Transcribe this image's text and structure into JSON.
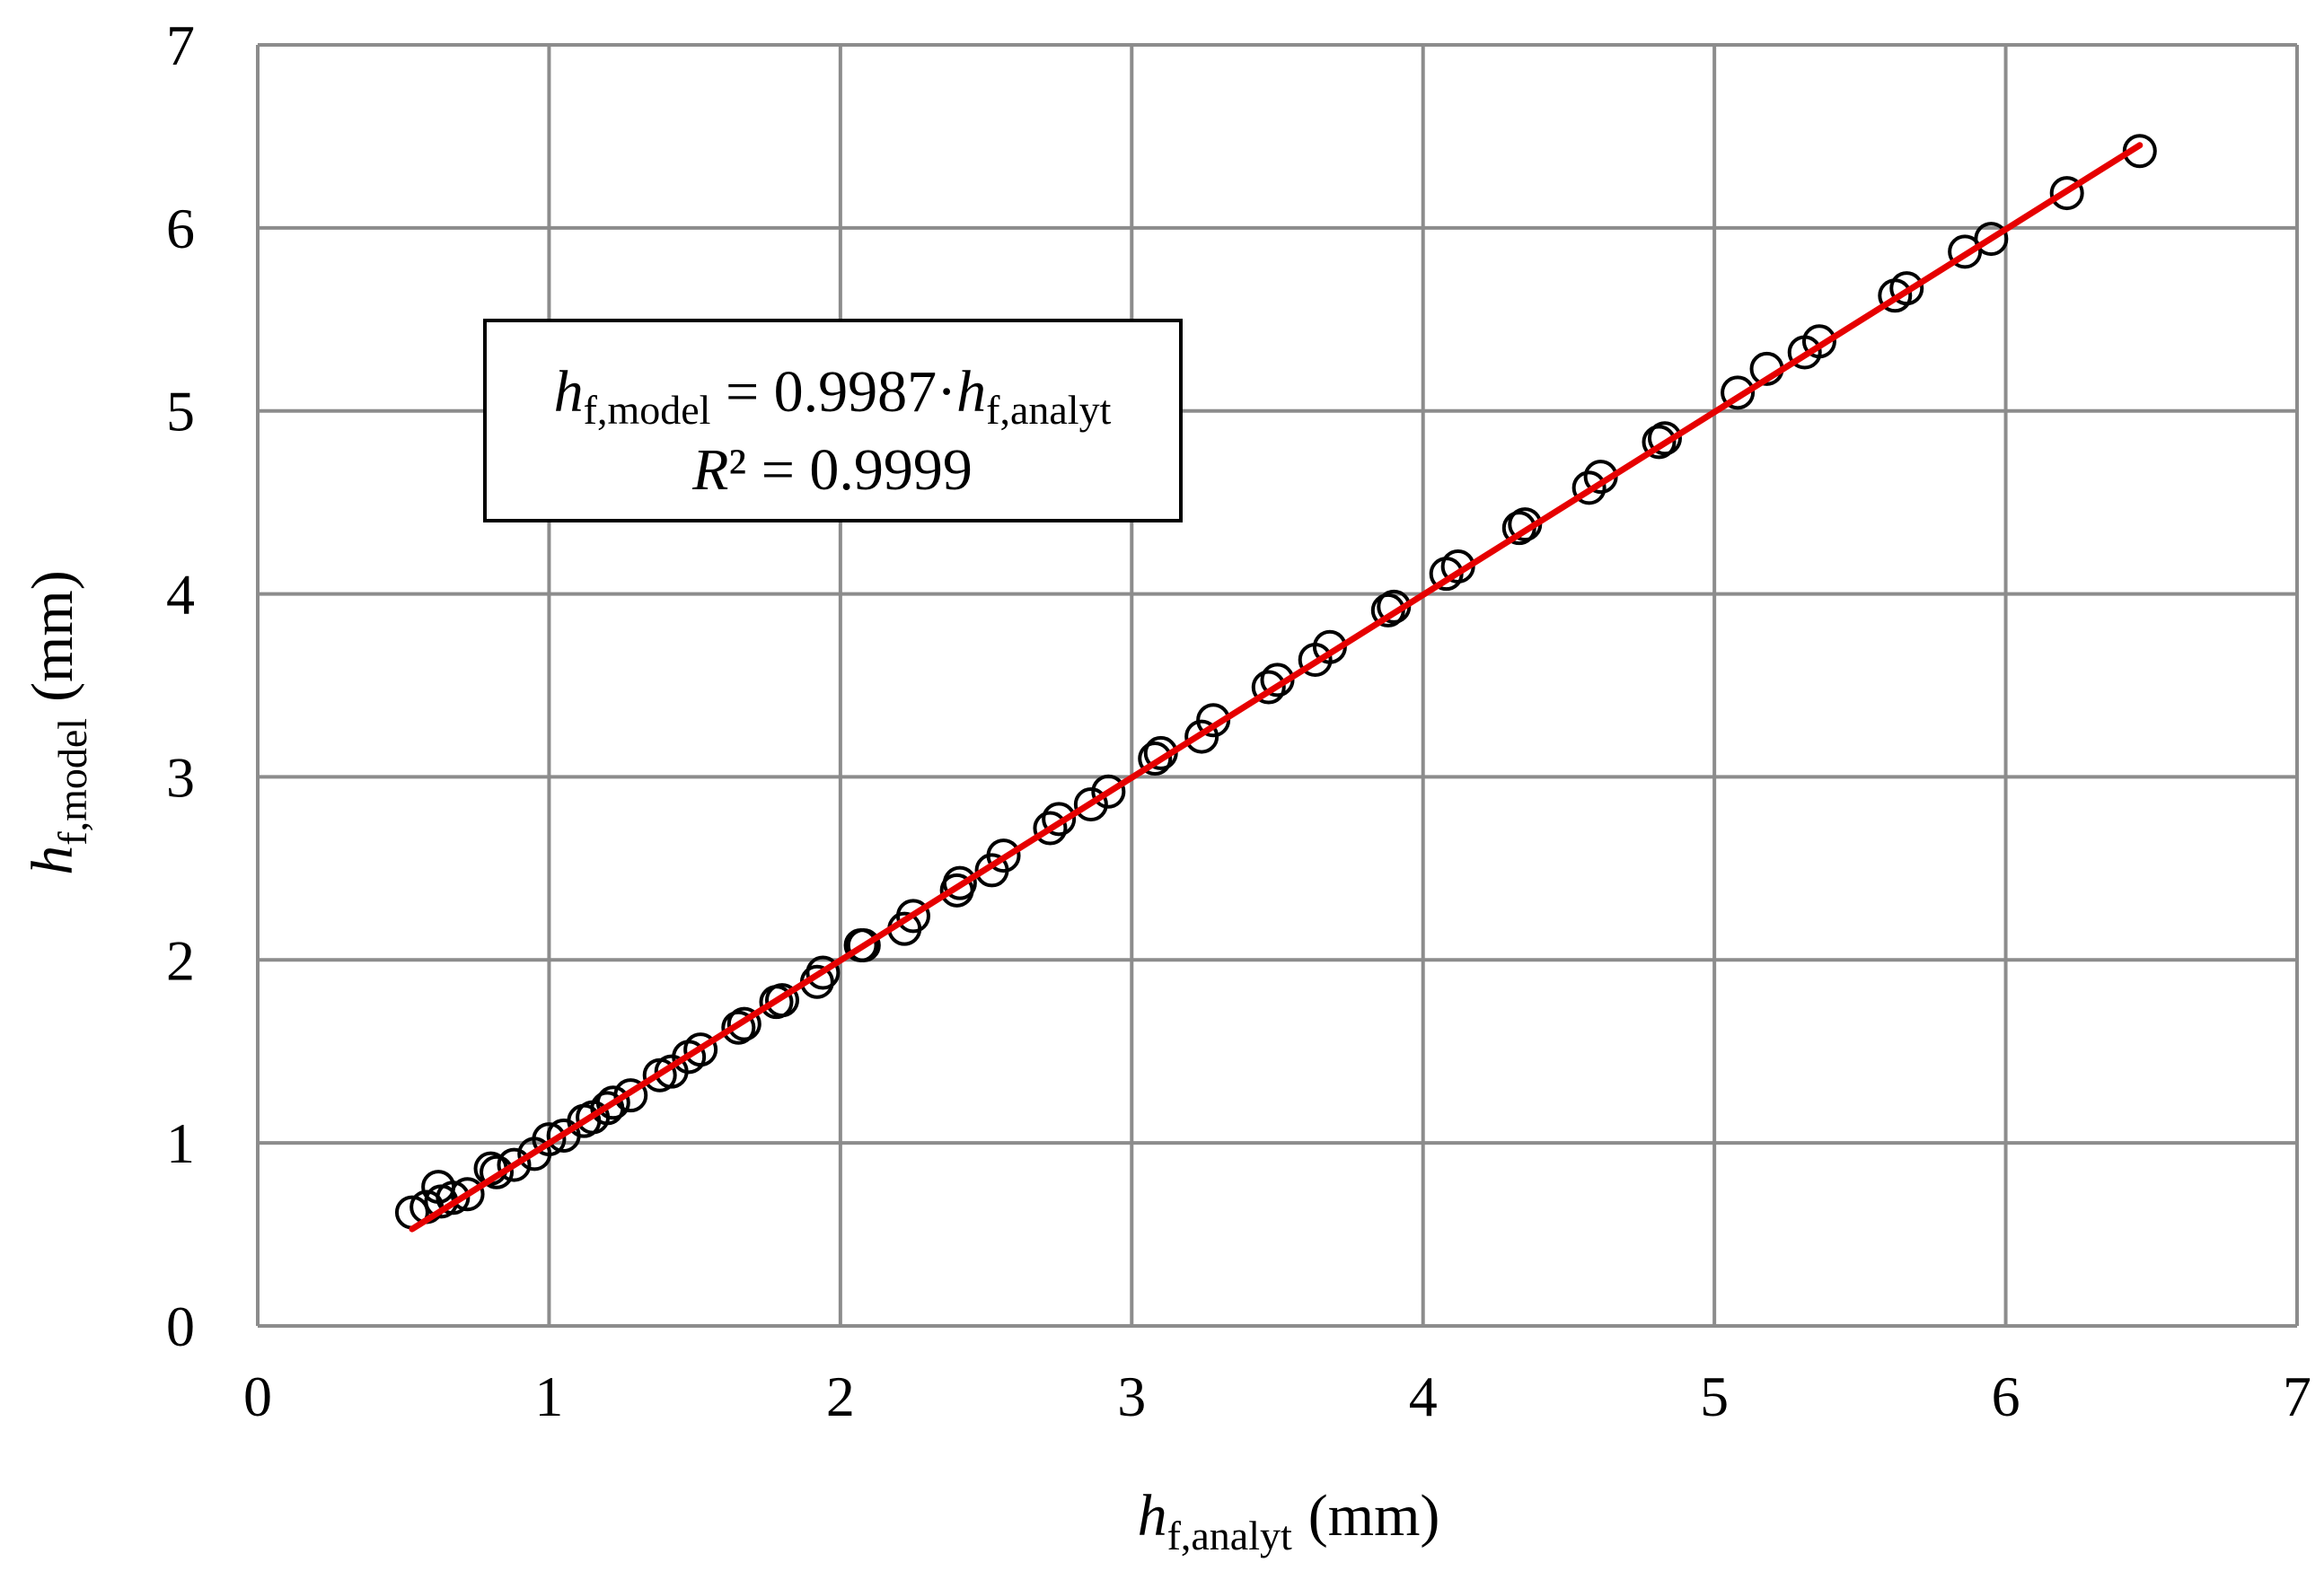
{
  "chart_data": {
    "type": "scatter",
    "xlim": [
      0,
      7
    ],
    "ylim": [
      0,
      7
    ],
    "x_ticks": [
      "0",
      "1",
      "2",
      "3",
      "4",
      "5",
      "6",
      "7"
    ],
    "y_ticks": [
      "0",
      "1",
      "2",
      "3",
      "4",
      "5",
      "6",
      "7"
    ],
    "grid": true,
    "xlabel": {
      "symbol": "h",
      "subscript": "f,analyt",
      "unit": "(mm)"
    },
    "ylabel": {
      "symbol": "h",
      "subscript": "f,model",
      "unit": "(mm)"
    },
    "annotation": {
      "line1": {
        "lhs_symbol": "h",
        "lhs_sub": "f,model",
        "eq": " = 0.9987·",
        "rhs_symbol": "h",
        "rhs_sub": "f,analyt"
      },
      "line2": {
        "symbol": "R",
        "rest": "² = 0.9999"
      }
    },
    "fit": {
      "slope": 0.9987,
      "x_range": [
        0.53,
        6.46
      ],
      "color": "#e60000"
    },
    "series": [
      {
        "name": "data",
        "marker": "open-circle",
        "x": [
          0.53,
          0.58,
          0.62,
          0.63,
          0.67,
          0.72,
          0.8,
          0.82,
          0.88,
          0.95,
          1.0,
          1.05,
          1.12,
          1.15,
          1.2,
          1.22,
          1.28,
          1.38,
          1.42,
          1.48,
          1.52,
          1.65,
          1.67,
          1.78,
          1.8,
          1.92,
          1.94,
          2.07,
          2.08,
          2.22,
          2.25,
          2.4,
          2.41,
          2.52,
          2.56,
          2.72,
          2.75,
          2.86,
          2.92,
          3.08,
          3.1,
          3.24,
          3.28,
          3.47,
          3.5,
          3.63,
          3.68,
          3.88,
          3.9,
          4.08,
          4.12,
          4.33,
          4.35,
          4.57,
          4.61,
          4.81,
          4.83,
          5.08,
          5.18,
          5.31,
          5.36,
          5.62,
          5.66,
          5.86,
          5.95,
          6.21,
          6.46
        ],
        "y": [
          0.62,
          0.65,
          0.76,
          0.68,
          0.7,
          0.72,
          0.86,
          0.84,
          0.88,
          0.94,
          1.02,
          1.04,
          1.12,
          1.14,
          1.19,
          1.22,
          1.26,
          1.37,
          1.39,
          1.47,
          1.51,
          1.63,
          1.65,
          1.77,
          1.78,
          1.88,
          1.93,
          2.08,
          2.08,
          2.17,
          2.24,
          2.38,
          2.42,
          2.49,
          2.57,
          2.72,
          2.77,
          2.85,
          2.92,
          3.1,
          3.13,
          3.22,
          3.31,
          3.49,
          3.53,
          3.64,
          3.71,
          3.91,
          3.93,
          4.11,
          4.15,
          4.36,
          4.38,
          4.58,
          4.64,
          4.83,
          4.85,
          5.1,
          5.23,
          5.32,
          5.38,
          5.63,
          5.67,
          5.87,
          5.94,
          6.19,
          6.42
        ]
      }
    ]
  }
}
